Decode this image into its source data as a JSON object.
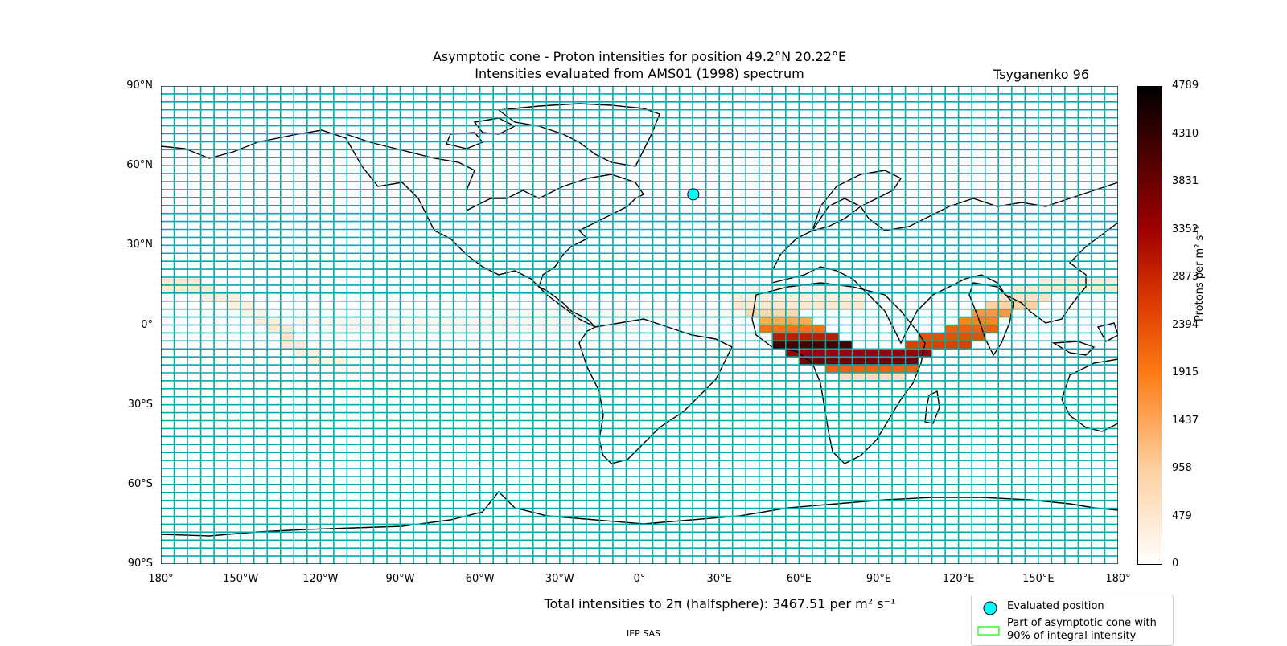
{
  "title_line1": "Asymptotic cone - Proton intensities for position 49.2°N 20.22°E",
  "title_line2": "Intensities evaluated from AMS01 (1998) spectrum",
  "model": "Tsyganenko 96",
  "lat_ticks": [
    "90°N",
    "60°N",
    "30°N",
    "0°",
    "30°S",
    "60°S",
    "90°S"
  ],
  "lon_ticks": [
    "180°",
    "150°W",
    "120°W",
    "90°W",
    "60°W",
    "30°W",
    "0°",
    "30°E",
    "60°E",
    "90°E",
    "120°E",
    "150°E",
    "180°"
  ],
  "colorbar": {
    "label": "Protons per m² s⁻¹",
    "ticks": [
      "4789",
      "4310",
      "3831",
      "3352",
      "2873",
      "2394",
      "1915",
      "1437",
      "958",
      "479",
      "0"
    ],
    "max": 4789,
    "min": 0
  },
  "total_intensity": "Total intensities to 2π (halfsphere): 3467.51 per m² s⁻¹",
  "legend": {
    "evaluated_position": "Evaluated position",
    "cone_part_line1": "Part of asymptotic cone with",
    "cone_part_line2": "90% of integral intensity"
  },
  "footer": "IEP SAS",
  "evaluated_position": {
    "lat": 49.2,
    "lon": 20.22
  },
  "colors": {
    "grid": "#00aaaa",
    "marker": "#00ffff",
    "legend_box": "#00ff00"
  },
  "map_data": {
    "type": "heatmap",
    "cell_size_deg": {
      "lon": 5,
      "lat": 3
    },
    "intensity_bands": [
      {
        "lat": 16.5,
        "lon_from": -180,
        "lon_to": -165,
        "value": 450
      },
      {
        "lat": 13.5,
        "lon_from": -180,
        "lon_to": -160,
        "value": 450
      },
      {
        "lat": 10.5,
        "lon_from": -165,
        "lon_to": -150,
        "value": 350
      },
      {
        "lat": 7.5,
        "lon_from": -155,
        "lon_to": -145,
        "value": 300
      },
      {
        "lat": 4.5,
        "lon_from": -150,
        "lon_to": -140,
        "value": 250
      },
      {
        "lat": 1.5,
        "lon_from": -145,
        "lon_to": -135,
        "value": 350
      },
      {
        "lat": -1.5,
        "lon_from": -140,
        "lon_to": -130,
        "value": 400
      },
      {
        "lat": -4.5,
        "lon_from": -135,
        "lon_to": -130,
        "value": 550
      },
      {
        "lat": -7.5,
        "lon_from": -135,
        "lon_to": -125,
        "value": 400
      },
      {
        "lat": -10.5,
        "lon_from": -130,
        "lon_to": -120,
        "value": 300
      },
      {
        "lat": -13.5,
        "lon_from": -125,
        "lon_to": -110,
        "value": 250
      },
      {
        "lat": -16.5,
        "lon_from": -115,
        "lon_to": -100,
        "value": 150
      },
      {
        "lat": 1.5,
        "lon_from": -130,
        "lon_to": -20,
        "value": 150
      },
      {
        "lat": -1.5,
        "lon_from": -120,
        "lon_to": 0,
        "value": 120
      },
      {
        "lat": 4.5,
        "lon_from": -50,
        "lon_to": 40,
        "value": 120
      },
      {
        "lat": 13.5,
        "lon_from": 40,
        "lon_to": 80,
        "value": 250
      },
      {
        "lat": 10.5,
        "lon_from": 35,
        "lon_to": 85,
        "value": 350
      },
      {
        "lat": 7.5,
        "lon_from": 35,
        "lon_to": 85,
        "value": 450
      },
      {
        "lat": 4.5,
        "lon_from": 40,
        "lon_to": 60,
        "value": 800
      },
      {
        "lat": 1.5,
        "lon_from": 45,
        "lon_to": 65,
        "value": 1400
      },
      {
        "lat": -1.5,
        "lon_from": 45,
        "lon_to": 70,
        "value": 2000
      },
      {
        "lat": -4.5,
        "lon_from": 50,
        "lon_to": 75,
        "value": 3000
      },
      {
        "lat": -7.5,
        "lon_from": 50,
        "lon_to": 80,
        "value": 4200
      },
      {
        "lat": -10.5,
        "lon_from": 55,
        "lon_to": 110,
        "value": 3400
      },
      {
        "lat": -13.5,
        "lon_from": 60,
        "lon_to": 105,
        "value": 3800
      },
      {
        "lat": -16.5,
        "lon_from": 70,
        "lon_to": 105,
        "value": 2200
      },
      {
        "lat": -19.5,
        "lon_from": 75,
        "lon_to": 100,
        "value": 700
      },
      {
        "lat": -7.5,
        "lon_from": 100,
        "lon_to": 125,
        "value": 2600
      },
      {
        "lat": -4.5,
        "lon_from": 105,
        "lon_to": 130,
        "value": 2400
      },
      {
        "lat": -1.5,
        "lon_from": 115,
        "lon_to": 135,
        "value": 2200
      },
      {
        "lat": 1.5,
        "lon_from": 120,
        "lon_to": 135,
        "value": 1800
      },
      {
        "lat": 4.5,
        "lon_from": 125,
        "lon_to": 140,
        "value": 1600
      },
      {
        "lat": 7.5,
        "lon_from": 130,
        "lon_to": 150,
        "value": 900
      },
      {
        "lat": 10.5,
        "lon_from": 135,
        "lon_to": 155,
        "value": 600
      },
      {
        "lat": 13.5,
        "lon_from": 140,
        "lon_to": 180,
        "value": 450
      },
      {
        "lat": 16.5,
        "lon_from": 150,
        "lon_to": 180,
        "value": 350
      }
    ]
  }
}
